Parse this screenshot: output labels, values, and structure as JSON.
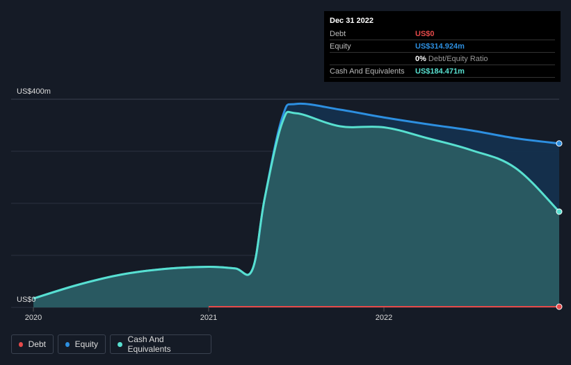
{
  "tooltip": {
    "date": "Dec 31 2022",
    "rows": [
      {
        "label": "Debt",
        "value": "US$0",
        "color": "#e64a4a"
      },
      {
        "label": "Equity",
        "value": "US$314.924m",
        "color": "#2d8fe0"
      },
      {
        "label": "",
        "value": "0%",
        "suffix": "Debt/Equity Ratio",
        "color": "#ffffff"
      },
      {
        "label": "Cash And Equivalents",
        "value": "US$184.471m",
        "color": "#58e0d0"
      }
    ]
  },
  "legend": {
    "debt": "Debt",
    "equity": "Equity",
    "cash": "Cash And Equivalents"
  },
  "colors": {
    "debt": "#e64a4a",
    "equity": "#2d8fe0",
    "cash": "#58e0d0",
    "background": "#151b26"
  },
  "chart_data": {
    "type": "area",
    "y_top_label": "US$400m",
    "y_bottom_label": "US$0",
    "ylim": [
      0,
      400
    ],
    "xlim": [
      2020.0,
      2023.0
    ],
    "x_ticks": [
      2020,
      2021,
      2022
    ],
    "x_tick_labels": [
      "2020",
      "2021",
      "2022"
    ],
    "series": [
      {
        "name": "Equity",
        "points": [
          [
            2020.0,
            17
          ],
          [
            2020.25,
            43
          ],
          [
            2020.5,
            63
          ],
          [
            2020.75,
            74
          ],
          [
            2021.0,
            78
          ],
          [
            2021.15,
            75
          ],
          [
            2021.25,
            73
          ],
          [
            2021.32,
            210
          ],
          [
            2021.42,
            365
          ],
          [
            2021.5,
            391
          ],
          [
            2021.75,
            380
          ],
          [
            2022.0,
            365
          ],
          [
            2022.25,
            352
          ],
          [
            2022.5,
            340
          ],
          [
            2022.75,
            325
          ],
          [
            2023.0,
            315
          ]
        ]
      },
      {
        "name": "Cash And Equivalents",
        "points": [
          [
            2020.0,
            17
          ],
          [
            2020.25,
            43
          ],
          [
            2020.5,
            63
          ],
          [
            2020.75,
            74
          ],
          [
            2021.0,
            78
          ],
          [
            2021.15,
            75
          ],
          [
            2021.25,
            73
          ],
          [
            2021.32,
            210
          ],
          [
            2021.42,
            355
          ],
          [
            2021.5,
            373
          ],
          [
            2021.75,
            348
          ],
          [
            2022.0,
            346
          ],
          [
            2022.25,
            325
          ],
          [
            2022.5,
            302
          ],
          [
            2022.75,
            268
          ],
          [
            2023.0,
            184
          ]
        ]
      },
      {
        "name": "Debt",
        "points": [
          [
            2021.0,
            0
          ],
          [
            2023.0,
            0
          ]
        ]
      }
    ]
  }
}
